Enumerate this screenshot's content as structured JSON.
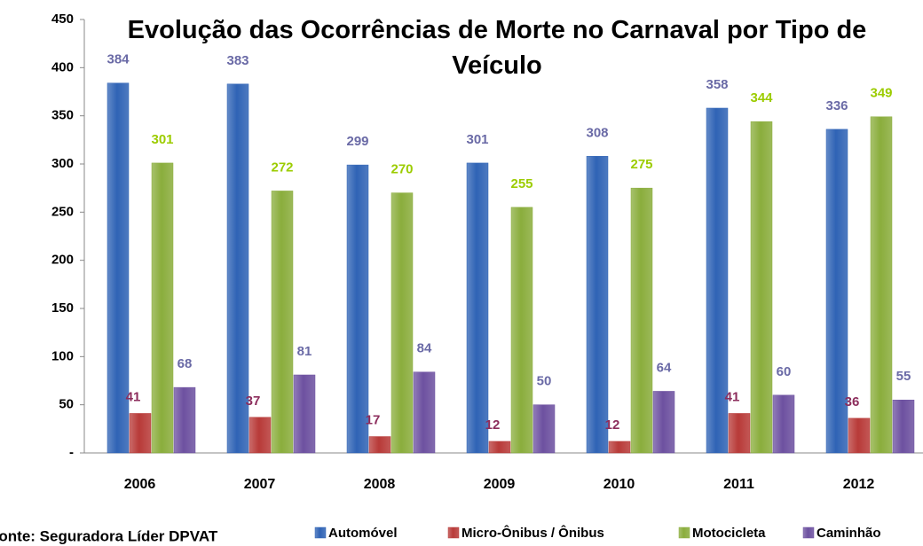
{
  "chart_data": {
    "type": "bar",
    "title": "Evolução das Ocorrências de Morte no Carnaval por Tipo de Veículo",
    "source": "Fonte: Seguradora Líder DPVAT",
    "categories": [
      "2006",
      "2007",
      "2008",
      "2009",
      "2010",
      "2011",
      "2012"
    ],
    "series": [
      {
        "name": "Automóvel",
        "color": "#2f63b5",
        "label_color": "#6a6aa6",
        "values": [
          384,
          383,
          299,
          301,
          308,
          358,
          336
        ]
      },
      {
        "name": "Micro-Ônibus / Ônibus",
        "color": "#b83a38",
        "label_color": "#8c2d5c",
        "values": [
          41,
          37,
          17,
          12,
          12,
          41,
          36
        ]
      },
      {
        "name": "Motocicleta",
        "color": "#8aad3c",
        "label_color": "#9ccc00",
        "values": [
          301,
          272,
          270,
          255,
          275,
          344,
          349
        ]
      },
      {
        "name": "Caminhão",
        "color": "#6d51a0",
        "label_color": "#6a6aa6",
        "values": [
          68,
          81,
          84,
          50,
          64,
          60,
          55
        ]
      }
    ],
    "ylim": [
      0,
      450
    ],
    "yticks": [
      {
        "value": 0,
        "label": "-"
      },
      50,
      100,
      150,
      200,
      250,
      300,
      350,
      400,
      450
    ]
  }
}
